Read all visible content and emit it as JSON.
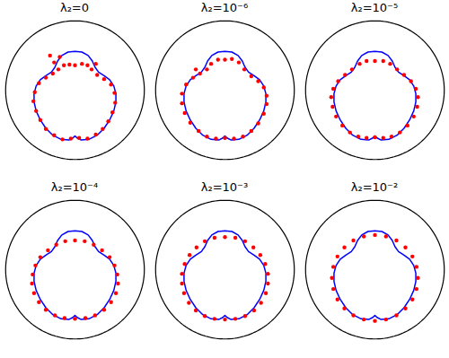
{
  "chart_data": [
    {
      "type": "scatter",
      "title": "λ₂=0",
      "tick_labels": false,
      "boundary": {
        "radius": 1,
        "color": "#000000"
      },
      "series": [
        {
          "color": "#0000ff",
          "line_style": "solid",
          "x": [
            0,
            0.1,
            0.19,
            0.25,
            0.29,
            0.34,
            0.42,
            0.5,
            0.56,
            0.59,
            0.59,
            0.56,
            0.5,
            0.42,
            0.32,
            0.2,
            0.09,
            0.03,
            0,
            -0.03,
            -0.09,
            -0.2,
            -0.32,
            -0.42,
            -0.5,
            -0.56,
            -0.59,
            -0.59,
            -0.56,
            -0.5,
            -0.42,
            -0.34,
            -0.29,
            -0.25,
            -0.19,
            -0.1,
            0
          ],
          "y": [
            0.56,
            0.55,
            0.5,
            0.42,
            0.33,
            0.26,
            0.21,
            0.15,
            0.06,
            -0.05,
            -0.17,
            -0.3,
            -0.43,
            -0.55,
            -0.65,
            -0.71,
            -0.72,
            -0.69,
            -0.66,
            -0.69,
            -0.72,
            -0.71,
            -0.65,
            -0.55,
            -0.43,
            -0.3,
            -0.17,
            -0.05,
            0.06,
            0.15,
            0.21,
            0.26,
            0.33,
            0.42,
            0.5,
            0.55,
            0.56
          ]
        },
        {
          "color": "#ff0000",
          "marker": "dot",
          "x": [
            0,
            0.1,
            0.18,
            0.24,
            0.32,
            0.42,
            0.52,
            0.57,
            0.58,
            0.54,
            0.48,
            0.4,
            0.3,
            0.18,
            0.06,
            -0.06,
            -0.18,
            -0.3,
            -0.42,
            -0.5,
            -0.56,
            -0.6,
            -0.58,
            -0.52,
            -0.42,
            -0.32,
            -0.24,
            -0.16,
            -0.08,
            -0.36,
            -0.3,
            -0.22,
            0.3
          ],
          "y": [
            0.36,
            0.38,
            0.36,
            0.3,
            0.22,
            0.16,
            0.08,
            -0.04,
            -0.18,
            -0.32,
            -0.45,
            -0.56,
            -0.64,
            -0.7,
            -0.69,
            -0.7,
            -0.71,
            -0.65,
            -0.56,
            -0.43,
            -0.3,
            -0.16,
            -0.03,
            0.1,
            0.18,
            0.24,
            0.3,
            0.36,
            0.37,
            0.5,
            0.4,
            0.48,
            0.38
          ]
        }
      ]
    },
    {
      "type": "scatter",
      "title": "λ₂=10⁻⁶",
      "tick_labels": false,
      "boundary": {
        "radius": 1,
        "color": "#000000"
      },
      "series": [
        {
          "color": "#0000ff",
          "line_style": "solid",
          "x": [
            0,
            0.1,
            0.19,
            0.25,
            0.29,
            0.34,
            0.42,
            0.5,
            0.56,
            0.59,
            0.59,
            0.56,
            0.5,
            0.42,
            0.32,
            0.2,
            0.09,
            0.03,
            0,
            -0.03,
            -0.09,
            -0.2,
            -0.32,
            -0.42,
            -0.5,
            -0.56,
            -0.59,
            -0.59,
            -0.56,
            -0.5,
            -0.42,
            -0.34,
            -0.29,
            -0.25,
            -0.19,
            -0.1,
            0
          ],
          "y": [
            0.56,
            0.55,
            0.5,
            0.42,
            0.33,
            0.26,
            0.21,
            0.15,
            0.06,
            -0.05,
            -0.17,
            -0.3,
            -0.43,
            -0.55,
            -0.65,
            -0.71,
            -0.72,
            -0.69,
            -0.66,
            -0.69,
            -0.72,
            -0.71,
            -0.65,
            -0.55,
            -0.43,
            -0.3,
            -0.17,
            -0.05,
            0.06,
            0.15,
            0.21,
            0.26,
            0.33,
            0.42,
            0.5,
            0.55,
            0.56
          ]
        },
        {
          "color": "#ff0000",
          "marker": "dot",
          "x": [
            0,
            0.1,
            0.2,
            0.28,
            0.38,
            0.48,
            0.56,
            0.6,
            0.6,
            0.56,
            0.48,
            0.38,
            0.26,
            0.13,
            0,
            -0.13,
            -0.26,
            -0.38,
            -0.5,
            -0.58,
            -0.62,
            -0.62,
            -0.56,
            -0.46,
            -0.36,
            -0.26,
            -0.2,
            -0.1,
            -0.42
          ],
          "y": [
            0.44,
            0.45,
            0.4,
            0.3,
            0.2,
            0.13,
            0.04,
            -0.08,
            -0.2,
            -0.34,
            -0.48,
            -0.59,
            -0.67,
            -0.7,
            -0.69,
            -0.7,
            -0.67,
            -0.59,
            -0.47,
            -0.33,
            -0.19,
            -0.05,
            0.08,
            0.18,
            0.24,
            0.3,
            0.38,
            0.44,
            0.3
          ]
        }
      ]
    },
    {
      "type": "scatter",
      "title": "λ₂=10⁻⁵",
      "tick_labels": false,
      "boundary": {
        "radius": 1,
        "color": "#000000"
      },
      "series": [
        {
          "color": "#0000ff",
          "line_style": "solid",
          "x": [
            0,
            0.1,
            0.19,
            0.25,
            0.29,
            0.34,
            0.42,
            0.5,
            0.56,
            0.59,
            0.59,
            0.56,
            0.5,
            0.42,
            0.32,
            0.2,
            0.09,
            0.03,
            0,
            -0.03,
            -0.09,
            -0.2,
            -0.32,
            -0.42,
            -0.5,
            -0.56,
            -0.59,
            -0.59,
            -0.56,
            -0.5,
            -0.42,
            -0.34,
            -0.29,
            -0.25,
            -0.19,
            -0.1,
            0
          ],
          "y": [
            0.56,
            0.55,
            0.5,
            0.42,
            0.33,
            0.26,
            0.21,
            0.15,
            0.06,
            -0.05,
            -0.17,
            -0.3,
            -0.43,
            -0.55,
            -0.65,
            -0.71,
            -0.72,
            -0.69,
            -0.66,
            -0.69,
            -0.72,
            -0.71,
            -0.65,
            -0.55,
            -0.43,
            -0.3,
            -0.17,
            -0.05,
            0.06,
            0.15,
            0.21,
            0.26,
            0.33,
            0.42,
            0.5,
            0.55,
            0.56
          ]
        },
        {
          "color": "#ff0000",
          "marker": "dot",
          "x": [
            0,
            0.12,
            0.22,
            0.32,
            0.42,
            0.52,
            0.59,
            0.62,
            0.61,
            0.56,
            0.47,
            0.36,
            0.24,
            0.12,
            0,
            -0.12,
            -0.24,
            -0.36,
            -0.47,
            -0.56,
            -0.61,
            -0.63,
            -0.6,
            -0.53,
            -0.43,
            -0.33,
            -0.22,
            -0.12
          ],
          "y": [
            0.42,
            0.42,
            0.38,
            0.3,
            0.22,
            0.13,
            0.02,
            -0.1,
            -0.24,
            -0.38,
            -0.51,
            -0.61,
            -0.67,
            -0.69,
            -0.68,
            -0.69,
            -0.67,
            -0.61,
            -0.51,
            -0.38,
            -0.24,
            -0.1,
            0.02,
            0.13,
            0.22,
            0.3,
            0.38,
            0.42
          ]
        }
      ]
    },
    {
      "type": "scatter",
      "title": "λ₂=10⁻⁴",
      "tick_labels": false,
      "boundary": {
        "radius": 1,
        "color": "#000000"
      },
      "series": [
        {
          "color": "#0000ff",
          "line_style": "solid",
          "x": [
            0,
            0.1,
            0.19,
            0.25,
            0.29,
            0.34,
            0.42,
            0.5,
            0.56,
            0.59,
            0.59,
            0.56,
            0.5,
            0.42,
            0.32,
            0.2,
            0.09,
            0.03,
            0,
            -0.03,
            -0.09,
            -0.2,
            -0.32,
            -0.42,
            -0.5,
            -0.56,
            -0.59,
            -0.59,
            -0.56,
            -0.5,
            -0.42,
            -0.34,
            -0.29,
            -0.25,
            -0.19,
            -0.1,
            0
          ],
          "y": [
            0.56,
            0.55,
            0.5,
            0.42,
            0.33,
            0.26,
            0.21,
            0.15,
            0.06,
            -0.05,
            -0.17,
            -0.3,
            -0.43,
            -0.55,
            -0.65,
            -0.71,
            -0.72,
            -0.69,
            -0.66,
            -0.69,
            -0.72,
            -0.71,
            -0.65,
            -0.55,
            -0.43,
            -0.3,
            -0.17,
            -0.05,
            0.06,
            0.15,
            0.21,
            0.26,
            0.33,
            0.42,
            0.5,
            0.55,
            0.56
          ]
        },
        {
          "color": "#ff0000",
          "marker": "dot",
          "x": [
            0,
            0.14,
            0.27,
            0.39,
            0.5,
            0.57,
            0.61,
            0.62,
            0.59,
            0.52,
            0.42,
            0.29,
            0.15,
            0,
            -0.15,
            -0.29,
            -0.42,
            -0.52,
            -0.59,
            -0.62,
            -0.61,
            -0.57,
            -0.5,
            -0.39,
            -0.27,
            -0.14
          ],
          "y": [
            0.42,
            0.41,
            0.36,
            0.28,
            0.18,
            0.06,
            -0.07,
            -0.2,
            -0.34,
            -0.47,
            -0.58,
            -0.66,
            -0.7,
            -0.71,
            -0.7,
            -0.66,
            -0.58,
            -0.47,
            -0.34,
            -0.2,
            -0.07,
            0.06,
            0.18,
            0.28,
            0.36,
            0.41
          ]
        }
      ]
    },
    {
      "type": "scatter",
      "title": "λ₂=10⁻³",
      "tick_labels": false,
      "boundary": {
        "radius": 1,
        "color": "#000000"
      },
      "series": [
        {
          "color": "#0000ff",
          "line_style": "solid",
          "x": [
            0,
            0.1,
            0.19,
            0.25,
            0.29,
            0.34,
            0.42,
            0.5,
            0.56,
            0.59,
            0.59,
            0.56,
            0.5,
            0.42,
            0.32,
            0.2,
            0.09,
            0.03,
            0,
            -0.03,
            -0.09,
            -0.2,
            -0.32,
            -0.42,
            -0.5,
            -0.56,
            -0.59,
            -0.59,
            -0.56,
            -0.5,
            -0.42,
            -0.34,
            -0.29,
            -0.25,
            -0.19,
            -0.1,
            0
          ],
          "y": [
            0.56,
            0.55,
            0.5,
            0.42,
            0.33,
            0.26,
            0.21,
            0.15,
            0.06,
            -0.05,
            -0.17,
            -0.3,
            -0.43,
            -0.55,
            -0.65,
            -0.71,
            -0.72,
            -0.69,
            -0.66,
            -0.69,
            -0.72,
            -0.71,
            -0.65,
            -0.55,
            -0.43,
            -0.3,
            -0.17,
            -0.05,
            0.06,
            0.15,
            0.21,
            0.26,
            0.33,
            0.42,
            0.5,
            0.55,
            0.56
          ]
        },
        {
          "color": "#ff0000",
          "marker": "dot",
          "x": [
            0,
            0.15,
            0.29,
            0.41,
            0.51,
            0.58,
            0.62,
            0.62,
            0.59,
            0.52,
            0.42,
            0.29,
            0.15,
            0,
            -0.15,
            -0.29,
            -0.42,
            -0.52,
            -0.59,
            -0.62,
            -0.62,
            -0.58,
            -0.51,
            -0.41,
            -0.29,
            -0.15
          ],
          "y": [
            0.47,
            0.46,
            0.41,
            0.32,
            0.21,
            0.08,
            -0.06,
            -0.2,
            -0.34,
            -0.48,
            -0.59,
            -0.67,
            -0.71,
            -0.72,
            -0.71,
            -0.67,
            -0.59,
            -0.48,
            -0.34,
            -0.2,
            -0.06,
            0.08,
            0.21,
            0.32,
            0.41,
            0.46
          ]
        }
      ]
    },
    {
      "type": "scatter",
      "title": "λ₂=10⁻²",
      "tick_labels": false,
      "boundary": {
        "radius": 1,
        "color": "#000000"
      },
      "series": [
        {
          "color": "#0000ff",
          "line_style": "solid",
          "x": [
            0,
            0.1,
            0.19,
            0.25,
            0.29,
            0.34,
            0.42,
            0.5,
            0.56,
            0.59,
            0.59,
            0.56,
            0.5,
            0.42,
            0.32,
            0.2,
            0.09,
            0.03,
            0,
            -0.03,
            -0.09,
            -0.2,
            -0.32,
            -0.42,
            -0.5,
            -0.56,
            -0.59,
            -0.59,
            -0.56,
            -0.5,
            -0.42,
            -0.34,
            -0.29,
            -0.25,
            -0.19,
            -0.1,
            0
          ],
          "y": [
            0.56,
            0.55,
            0.5,
            0.42,
            0.33,
            0.26,
            0.21,
            0.15,
            0.06,
            -0.05,
            -0.17,
            -0.3,
            -0.43,
            -0.55,
            -0.65,
            -0.71,
            -0.72,
            -0.69,
            -0.66,
            -0.69,
            -0.72,
            -0.71,
            -0.65,
            -0.55,
            -0.43,
            -0.3,
            -0.17,
            -0.05,
            0.06,
            0.15,
            0.21,
            0.26,
            0.33,
            0.42,
            0.5,
            0.55,
            0.56
          ]
        },
        {
          "color": "#ff0000",
          "marker": "dot",
          "x": [
            0,
            0.16,
            0.31,
            0.44,
            0.54,
            0.6,
            0.62,
            0.6,
            0.54,
            0.44,
            0.31,
            0.16,
            0,
            -0.16,
            -0.31,
            -0.44,
            -0.54,
            -0.6,
            -0.62,
            -0.6,
            -0.54,
            -0.44,
            -0.31,
            -0.16
          ],
          "y": [
            0.5,
            0.48,
            0.42,
            0.32,
            0.19,
            0.04,
            -0.12,
            -0.28,
            -0.43,
            -0.56,
            -0.66,
            -0.72,
            -0.74,
            -0.72,
            -0.66,
            -0.56,
            -0.43,
            -0.28,
            -0.12,
            0.04,
            0.19,
            0.32,
            0.42,
            0.48
          ]
        }
      ]
    }
  ]
}
